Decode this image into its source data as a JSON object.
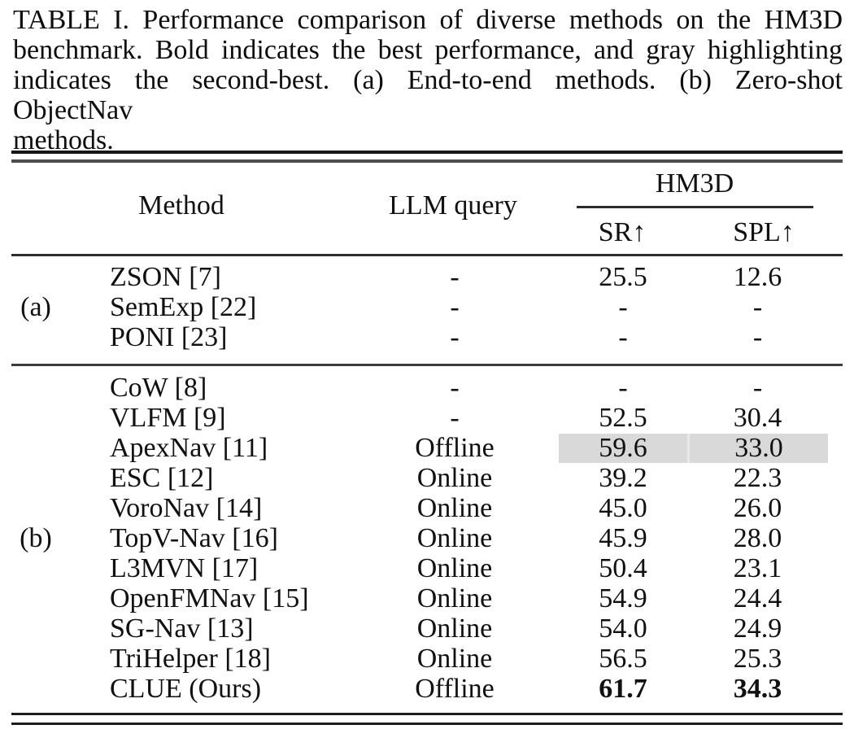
{
  "caption": {
    "lines": [
      "TABLE I. Performance comparison of diverse methods on the HM3D",
      "benchmark. Bold indicates the best performance, and gray highlighting",
      "indicates the second-best. (a) End-to-end methods. (b) Zero-shot ObjectNav",
      "methods."
    ]
  },
  "table": {
    "headers": {
      "method": "Method",
      "llm_query": "LLM query",
      "group": "HM3D",
      "sr": "SR↑",
      "spl": "SPL↑"
    },
    "highlight_color": "#d9d9d9",
    "sections": [
      {
        "label": "(a)",
        "rows": [
          {
            "method": "ZSON [7]",
            "llm": "-",
            "sr": "25.5",
            "spl": "12.6"
          },
          {
            "method": "SemExp [22]",
            "llm": "-",
            "sr": "-",
            "spl": "-"
          },
          {
            "method": "PONI [23]",
            "llm": "-",
            "sr": "-",
            "spl": "-"
          }
        ]
      },
      {
        "label": "(b)",
        "rows": [
          {
            "method": "CoW [8]",
            "llm": "-",
            "sr": "-",
            "spl": "-"
          },
          {
            "method": "VLFM [9]",
            "llm": "-",
            "sr": "52.5",
            "spl": "30.4"
          },
          {
            "method": "ApexNav [11]",
            "llm": "Offline",
            "sr": "59.6",
            "spl": "33.0",
            "emphasis": "second-best-highlight"
          },
          {
            "method": "ESC [12]",
            "llm": "Online",
            "sr": "39.2",
            "spl": "22.3"
          },
          {
            "method": "VoroNav [14]",
            "llm": "Online",
            "sr": "45.0",
            "spl": "26.0"
          },
          {
            "method": "TopV-Nav [16]",
            "llm": "Online",
            "sr": "45.9",
            "spl": "28.0"
          },
          {
            "method": "L3MVN [17]",
            "llm": "Online",
            "sr": "50.4",
            "spl": "23.1"
          },
          {
            "method": "OpenFMNav [15]",
            "llm": "Online",
            "sr": "54.9",
            "spl": "24.4"
          },
          {
            "method": "SG-Nav [13]",
            "llm": "Online",
            "sr": "54.0",
            "spl": "24.9"
          },
          {
            "method": "TriHelper [18]",
            "llm": "Online",
            "sr": "56.5",
            "spl": "25.3"
          },
          {
            "method": "CLUE (Ours)",
            "llm": "Offline",
            "sr": "61.7",
            "spl": "34.3",
            "emphasis": "best-bold"
          }
        ]
      }
    ]
  }
}
